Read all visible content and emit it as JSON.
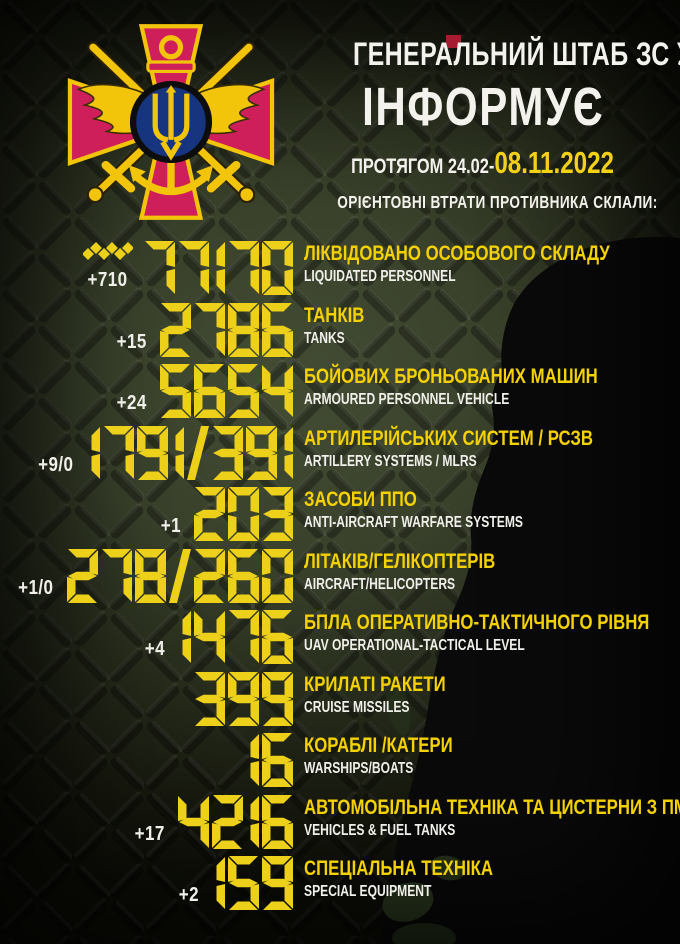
{
  "header": {
    "org_line": "ГЕНЕРАЛЬНИЙ ШТАБ ЗС УКРАЇНИ",
    "informs": "ІНФОРМУЄ",
    "period_prefix": "ПРОТЯГОМ 24.02-",
    "period_date": "08.11.2022",
    "subtitle": "ОРІЄНТОВНІ ВТРАТИ ПРОТИВНИКА СКЛАЛИ:"
  },
  "emblem": {
    "name": "general-staff-of-ukraine-emblem"
  },
  "colors": {
    "number_yellow": "#ecd01a",
    "label_yellow": "#f4d100",
    "text_white": "#f0efe9",
    "date_yellow": "#f2d118",
    "cross_crimson": "#cf1f5b",
    "emblem_yellow": "#f2c50a",
    "trident_blue": "#16357e",
    "accent_red": "#a51c30",
    "bg_olive": "#39412b"
  },
  "losses": [
    {
      "value": "77170",
      "delta": "+710",
      "icon": "approx-squiggle-icon",
      "label_ua": "ЛІКВІДОВАНО ОСОБОВОГО СКЛАДУ",
      "label_en": "LIQUIDATED PERSONNEL"
    },
    {
      "value": "2786",
      "delta": "+15",
      "icon": "",
      "label_ua": "ТАНКІВ",
      "label_en": "TANKS"
    },
    {
      "value": "5654",
      "delta": "+24",
      "icon": "",
      "label_ua": "БОЙОВИХ БРОНЬОВАНИХ МАШИН",
      "label_en": "ARMOURED PERSONNEL VEHICLE"
    },
    {
      "value": "1791/391",
      "delta": "+9/0",
      "icon": "",
      "label_ua": "АРТИЛЕРІЙСЬКИХ СИСТЕМ / РСЗВ",
      "label_en": "ARTILLERY SYSTEMS / MLRS"
    },
    {
      "value": "203",
      "delta": "+1",
      "icon": "",
      "label_ua": "ЗАСОБИ ППО",
      "label_en": "ANTI-AIRCRAFT WARFARE SYSTEMS"
    },
    {
      "value": "278/260",
      "delta": "+1/0",
      "icon": "",
      "label_ua": "ЛІТАКІВ/ГЕЛІКОПТЕРІВ",
      "label_en": "AIRCRAFT/HELICOPTERS"
    },
    {
      "value": "1476",
      "delta": "+4",
      "icon": "",
      "label_ua": "БПЛА ОПЕРАТИВНО-ТАКТИЧНОГО РІВНЯ",
      "label_en": "UAV OPERATIONAL-TACTICAL LEVEL"
    },
    {
      "value": "399",
      "delta": "",
      "icon": "",
      "label_ua": "КРИЛАТІ РАКЕТИ",
      "label_en": "CRUISE MISSILES"
    },
    {
      "value": "16",
      "delta": "",
      "icon": "",
      "label_ua": "КОРАБЛІ /КАТЕРИ",
      "label_en": "WARSHIPS/BOATS"
    },
    {
      "value": "4216",
      "delta": "+17",
      "icon": "",
      "label_ua": "АВТОМОБІЛЬНА ТЕХНІКА ТА ЦИСТЕРНИ З ПММ",
      "label_en": "VEHICLES  & FUEL TANKS"
    },
    {
      "value": "159",
      "delta": "+2",
      "icon": "",
      "label_ua": "СПЕЦІАЛЬНА ТЕХНІКА",
      "label_en": "SPECIAL EQUIPMENT"
    }
  ]
}
